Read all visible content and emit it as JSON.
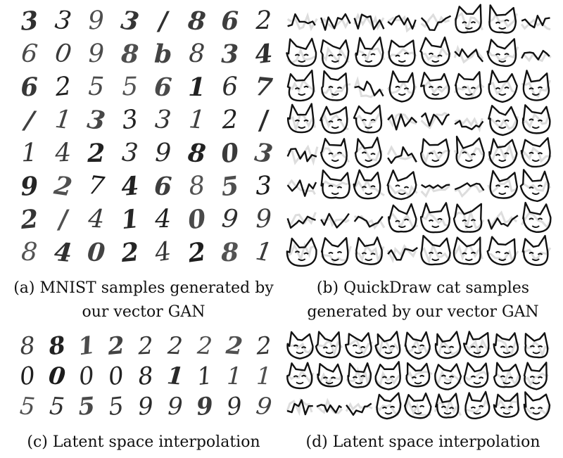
{
  "captions": {
    "a": [
      "(a) MNIST samples generated by",
      "our vector GAN"
    ],
    "b": [
      "(b) QuickDraw cat samples",
      "generated by our vector GAN"
    ],
    "c": "(c) Latent space interpolation",
    "d": "(d) Latent space interpolation"
  },
  "mnist_samples": [
    [
      "3",
      "3",
      "9",
      "3",
      "/",
      "8",
      "6",
      "2"
    ],
    [
      "6",
      "0",
      "9",
      "8",
      "b",
      "8",
      "3",
      "4"
    ],
    [
      "6",
      "2",
      "5",
      "5",
      "6",
      "1",
      "6",
      "7"
    ],
    [
      "/",
      "1",
      "3",
      "3",
      "3",
      "1",
      "2",
      "/"
    ],
    [
      "1",
      "4",
      "2",
      "3",
      "9",
      "8",
      "0",
      "3"
    ],
    [
      "9",
      "2",
      "7",
      "4",
      "6",
      "8",
      "5",
      "3"
    ],
    [
      "2",
      "/",
      "4",
      "1",
      "4",
      "0",
      "9",
      "9"
    ],
    [
      "8",
      "4",
      "0",
      "2",
      "4",
      "2",
      "8",
      "1"
    ]
  ],
  "mnist_interpolation": [
    [
      "8",
      "8",
      "1",
      "2",
      "2",
      "2",
      "2",
      "2",
      "2"
    ],
    [
      "0",
      "0",
      "0",
      "0",
      "8",
      "1",
      "1",
      "1",
      "1"
    ],
    [
      "5",
      "5",
      "5",
      "5",
      "9",
      "9",
      "9",
      "9",
      "9"
    ]
  ]
}
